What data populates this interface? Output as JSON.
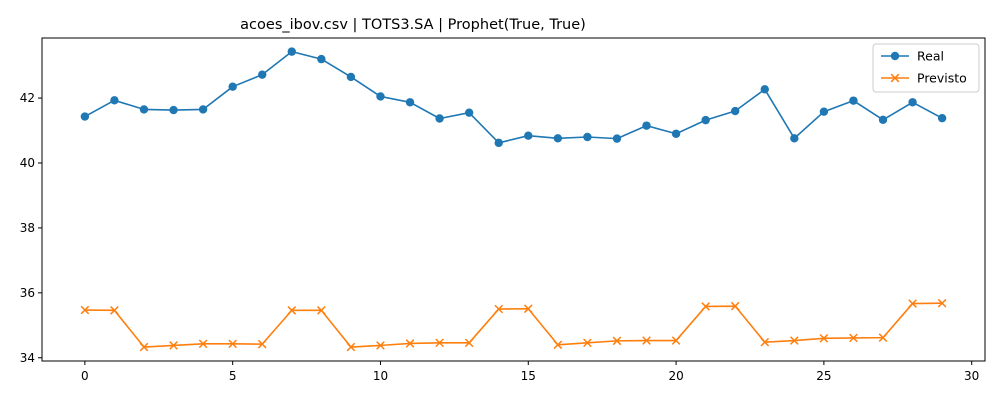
{
  "chart_data": {
    "type": "line",
    "title": "acoes_ibov.csv | TOTS3.SA | Prophet(True, True)",
    "xlabel": "",
    "ylabel": "",
    "xlim": [
      -1.45,
      30.45
    ],
    "ylim": [
      33.9,
      43.85
    ],
    "xticks": [
      0,
      5,
      10,
      15,
      20,
      25,
      30
    ],
    "yticks": [
      34,
      36,
      38,
      40,
      42
    ],
    "grid": false,
    "legend": "top-right",
    "x": [
      0,
      1,
      2,
      3,
      4,
      5,
      6,
      7,
      8,
      9,
      10,
      11,
      12,
      13,
      14,
      15,
      16,
      17,
      18,
      19,
      20,
      21,
      22,
      23,
      24,
      25,
      26,
      27,
      28,
      29
    ],
    "series": [
      {
        "name": "Real",
        "color": "#1f77b4",
        "marker": "circle",
        "values": [
          41.43,
          41.93,
          41.65,
          41.63,
          41.65,
          42.35,
          42.72,
          43.43,
          43.2,
          42.65,
          42.05,
          41.87,
          41.37,
          41.55,
          40.62,
          40.84,
          40.76,
          40.8,
          40.75,
          41.15,
          40.9,
          41.32,
          41.6,
          42.27,
          40.76,
          41.58,
          41.92,
          41.33,
          41.87,
          41.38
        ]
      },
      {
        "name": "Previsto",
        "color": "#ff7f0e",
        "marker": "x",
        "values": [
          35.47,
          35.46,
          34.33,
          34.38,
          34.43,
          34.43,
          34.42,
          35.46,
          35.46,
          34.33,
          34.38,
          34.44,
          34.46,
          34.46,
          35.5,
          35.51,
          34.4,
          34.46,
          34.52,
          34.53,
          34.53,
          35.58,
          35.59,
          34.48,
          34.53,
          34.6,
          34.61,
          34.62,
          35.67,
          35.68
        ]
      }
    ]
  }
}
